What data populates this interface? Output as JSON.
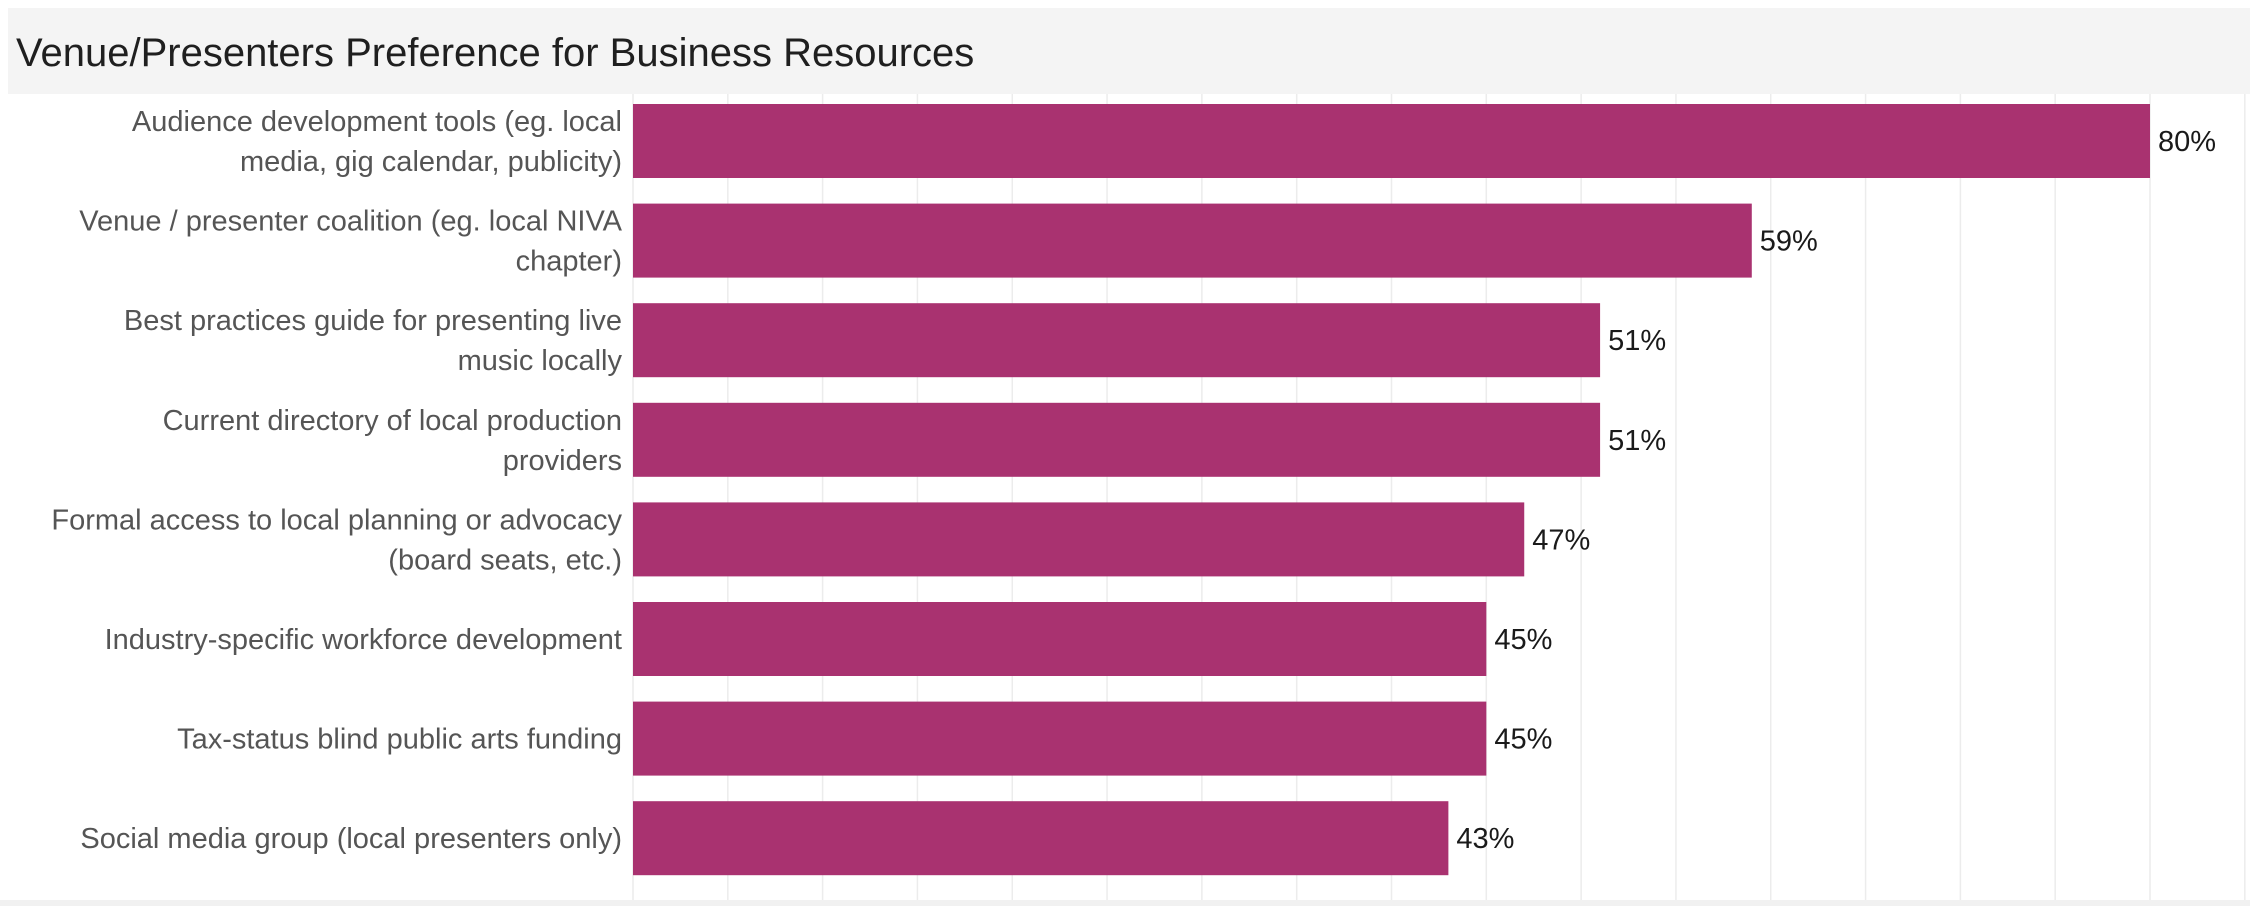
{
  "header": {
    "title": "Venue/Presenters Preference for Business Resources"
  },
  "chart_data": {
    "type": "bar",
    "orientation": "horizontal",
    "title": "Venue/Presenters Preference for Business Resources",
    "xlabel": "",
    "ylabel": "",
    "xlim": [
      0,
      85
    ],
    "grid": true,
    "bar_color": "#a93270",
    "categories": [
      [
        "Audience development tools (eg. local",
        "media, gig calendar, publicity)"
      ],
      [
        "Venue / presenter coalition (eg. local NIVA",
        "chapter)"
      ],
      [
        "Best practices guide for presenting live",
        "music locally"
      ],
      [
        "Current directory of local production",
        "providers"
      ],
      [
        "Formal access to local planning or advocacy",
        "(board seats, etc.)"
      ],
      [
        "Industry-specific workforce development"
      ],
      [
        "Tax-status blind public arts funding"
      ],
      [
        "Social media group (local presenters only)"
      ]
    ],
    "values": [
      80,
      59,
      51,
      51,
      47,
      45,
      45,
      43
    ],
    "value_labels": [
      "80%",
      "59%",
      "51%",
      "51%",
      "47%",
      "45%",
      "45%",
      "43%"
    ]
  }
}
